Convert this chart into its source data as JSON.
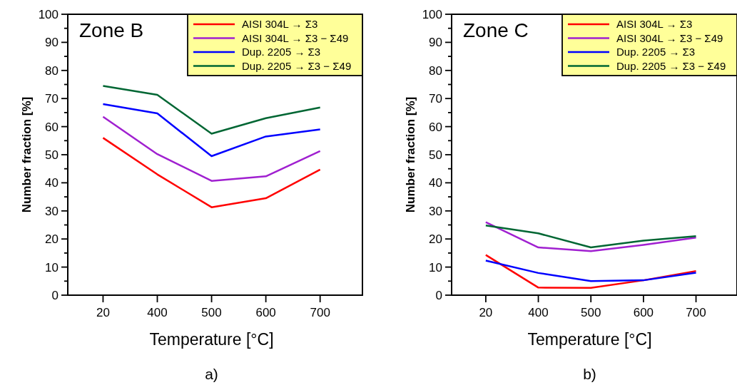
{
  "chart_data": [
    {
      "type": "line",
      "title": "Zone B",
      "xlabel": "Temperature [°C]",
      "ylabel": "Number fraction [%]",
      "annotations": [
        "a)"
      ],
      "categories": [
        "20",
        "400",
        "500",
        "600",
        "700"
      ],
      "ylim": [
        0,
        100
      ],
      "yticks": [
        0,
        {
          "value": 5,
          "label": null
        },
        10,
        {
          "value": 15,
          "label": null
        },
        20,
        {
          "value": 25,
          "label": null
        },
        30,
        {
          "value": 35,
          "label": null
        },
        40,
        {
          "value": 45,
          "label": null
        },
        50,
        {
          "value": 55,
          "label": null
        },
        60,
        {
          "value": 65,
          "label": null
        },
        70,
        {
          "value": 75,
          "label": null
        },
        80,
        {
          "value": 85,
          "label": null
        },
        90,
        {
          "value": 95,
          "label": null
        },
        100
      ],
      "legend": "top right",
      "grid": false,
      "series": [
        {
          "name": "AISI 304L → Σ3",
          "color": "#ff0000",
          "values": [
            56,
            43,
            31.3,
            34.5,
            44.7
          ]
        },
        {
          "name": "AISI 304L → Σ3 − Σ49",
          "color": "#a020d0",
          "values": [
            63.5,
            50.2,
            40.7,
            42.3,
            51.3
          ]
        },
        {
          "name": "Dup. 2205 → Σ3",
          "color": "#0000ff",
          "values": [
            68,
            64.7,
            49.5,
            56.5,
            59
          ]
        },
        {
          "name": "Dup. 2205 → Σ3 − Σ49",
          "color": "#006633",
          "values": [
            74.5,
            71.3,
            57.5,
            63,
            66.8
          ]
        }
      ]
    },
    {
      "type": "line",
      "title": "Zone C",
      "xlabel": "Temperature [°C]",
      "ylabel": "Number fraction [%]",
      "annotations": [
        "b)"
      ],
      "categories": [
        "20",
        "400",
        "500",
        "600",
        "700"
      ],
      "ylim": [
        0,
        100
      ],
      "yticks": [
        0,
        {
          "value": 5,
          "label": null
        },
        10,
        {
          "value": 15,
          "label": null
        },
        20,
        {
          "value": 25,
          "label": null
        },
        30,
        {
          "value": 35,
          "label": null
        },
        40,
        {
          "value": 45,
          "label": null
        },
        50,
        {
          "value": 55,
          "label": null
        },
        60,
        {
          "value": 65,
          "label": null
        },
        70,
        {
          "value": 75,
          "label": null
        },
        80,
        {
          "value": 85,
          "label": null
        },
        90,
        {
          "value": 95,
          "label": null
        },
        100
      ],
      "legend": "top right",
      "grid": false,
      "series": [
        {
          "name": "AISI 304L → Σ3",
          "color": "#ff0000",
          "values": [
            14.3,
            2.7,
            2.6,
            5.3,
            8.6
          ]
        },
        {
          "name": "AISI 304L → Σ3 − Σ49",
          "color": "#a020d0",
          "values": [
            26,
            17,
            15.7,
            17.9,
            20.5
          ]
        },
        {
          "name": "Dup. 2205 → Σ3",
          "color": "#0000ff",
          "values": [
            12.3,
            7.9,
            5,
            5.3,
            8
          ]
        },
        {
          "name": "Dup. 2205 → Σ3 − Σ49",
          "color": "#006633",
          "values": [
            24.8,
            22,
            17,
            19.4,
            21
          ]
        }
      ]
    }
  ]
}
